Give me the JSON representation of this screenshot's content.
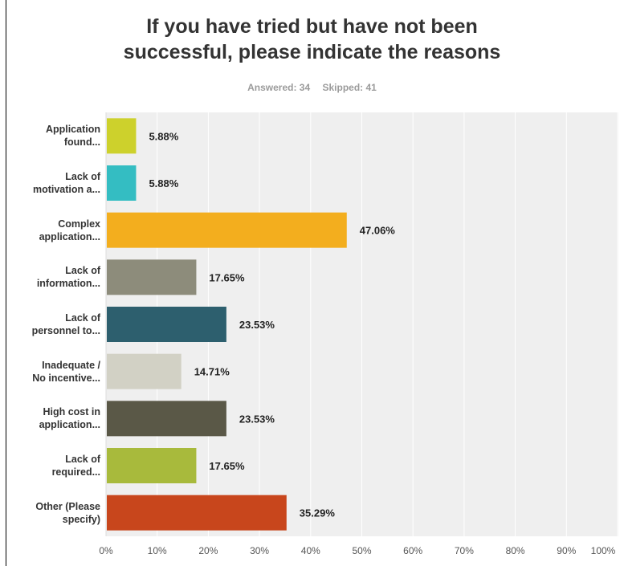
{
  "chart_data": {
    "type": "bar",
    "orientation": "horizontal",
    "title_lines": [
      "If you have tried but have not been",
      "successful, please indicate the reasons"
    ],
    "answered": "Answered: 34",
    "skipped": "Skipped: 41",
    "categories": [
      [
        "Application",
        "found..."
      ],
      [
        "Lack of",
        "motivation a..."
      ],
      [
        "Complex",
        "application..."
      ],
      [
        "Lack of",
        "information..."
      ],
      [
        "Lack of",
        "personnel to..."
      ],
      [
        "Inadequate /",
        "No incentive..."
      ],
      [
        "High cost in",
        "application..."
      ],
      [
        "Lack of",
        "required..."
      ],
      [
        "Other (Please",
        "specify)"
      ]
    ],
    "values": [
      5.88,
      5.88,
      47.06,
      17.65,
      23.53,
      14.71,
      23.53,
      17.65,
      35.29
    ],
    "value_labels": [
      "5.88%",
      "5.88%",
      "47.06%",
      "17.65%",
      "23.53%",
      "14.71%",
      "23.53%",
      "17.65%",
      "35.29%"
    ],
    "bar_colors": [
      "#cdd12c",
      "#34bdc2",
      "#f3ae1e",
      "#8d8c7b",
      "#2d5f6e",
      "#d2d1c5",
      "#5a5847",
      "#a8ba3c",
      "#c8461c"
    ],
    "xlim": [
      0,
      100
    ],
    "x_ticks": [
      "0%",
      "10%",
      "20%",
      "30%",
      "40%",
      "50%",
      "60%",
      "70%",
      "80%",
      "90%",
      "100%"
    ],
    "grid": true,
    "plot_background": "#efefef"
  }
}
